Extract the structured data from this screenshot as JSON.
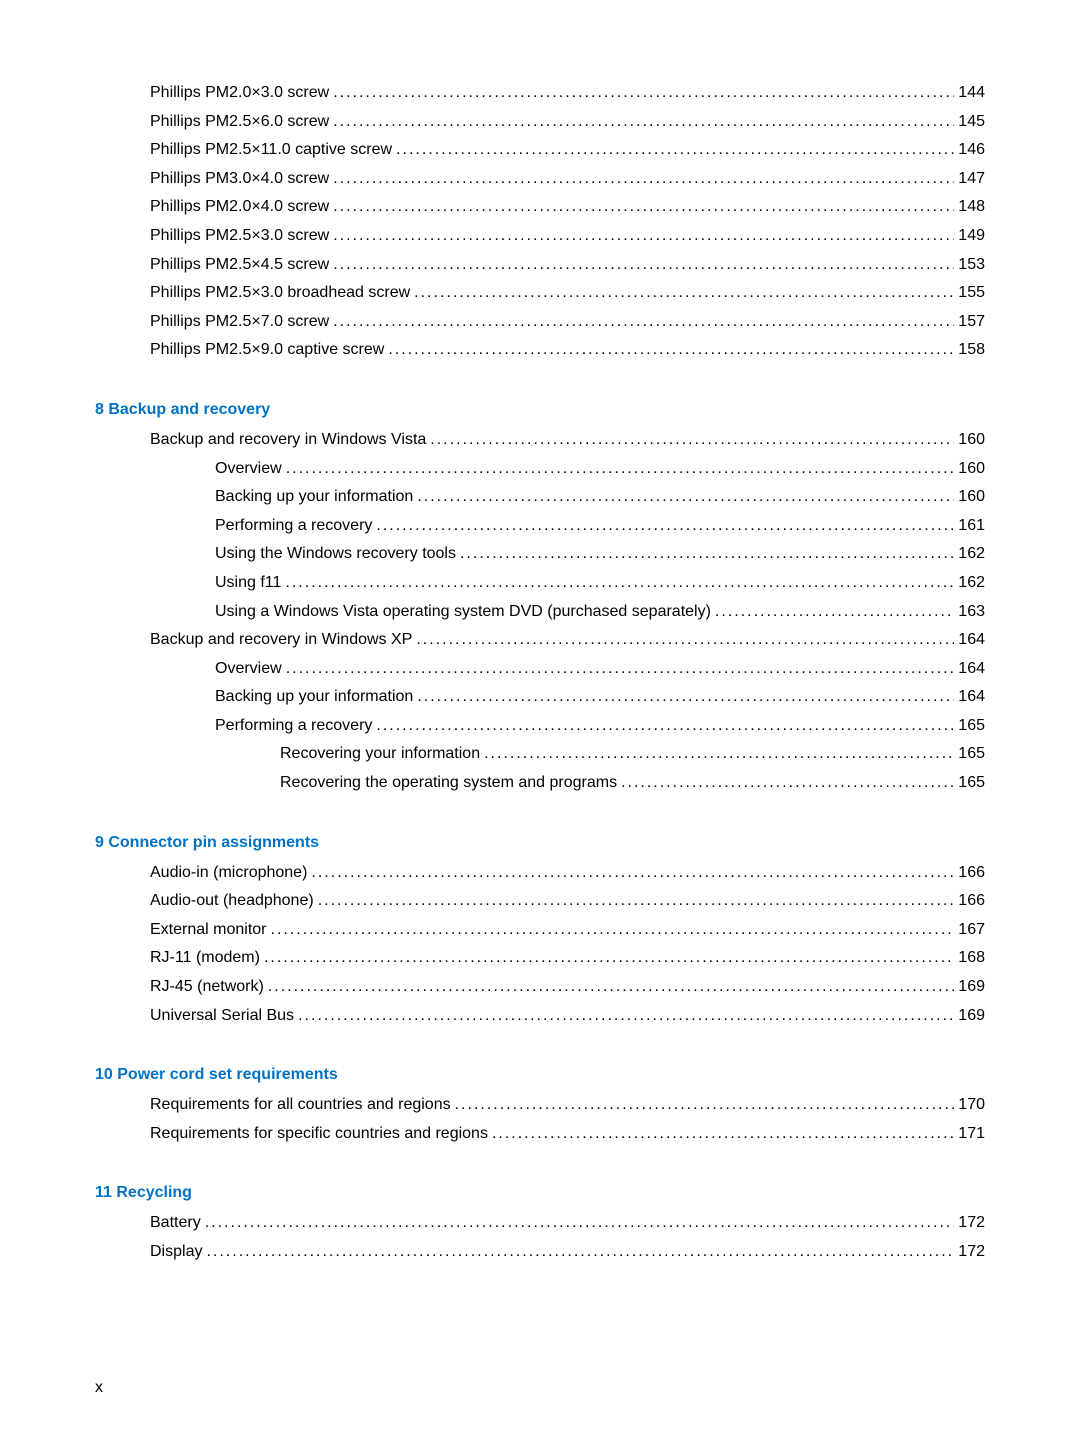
{
  "colors": {
    "heading": "#0072c6",
    "text": "#000000",
    "background": "#ffffff"
  },
  "typography": {
    "body_fontsize": 16,
    "heading_fontsize": 16,
    "heading_weight": "bold",
    "font_family": "Arial"
  },
  "page_footer": "x",
  "sections": [
    {
      "heading": null,
      "entries": [
        {
          "indent": 1,
          "label": "Phillips PM2.0×3.0 screw",
          "page": "144"
        },
        {
          "indent": 1,
          "label": "Phillips PM2.5×6.0 screw",
          "page": "145"
        },
        {
          "indent": 1,
          "label": "Phillips PM2.5×11.0 captive screw",
          "page": "146"
        },
        {
          "indent": 1,
          "label": "Phillips PM3.0×4.0 screw",
          "page": "147"
        },
        {
          "indent": 1,
          "label": "Phillips PM2.0×4.0 screw",
          "page": "148"
        },
        {
          "indent": 1,
          "label": "Phillips PM2.5×3.0 screw",
          "page": "149"
        },
        {
          "indent": 1,
          "label": "Phillips PM2.5×4.5 screw",
          "page": "153"
        },
        {
          "indent": 1,
          "label": "Phillips PM2.5×3.0 broadhead screw",
          "page": "155"
        },
        {
          "indent": 1,
          "label": "Phillips PM2.5×7.0 screw",
          "page": "157"
        },
        {
          "indent": 1,
          "label": "Phillips PM2.5×9.0 captive screw",
          "page": "158"
        }
      ]
    },
    {
      "heading": "8  Backup and recovery",
      "entries": [
        {
          "indent": 1,
          "label": "Backup and recovery in Windows Vista",
          "page": "160"
        },
        {
          "indent": 2,
          "label": "Overview",
          "page": "160"
        },
        {
          "indent": 2,
          "label": "Backing up your information",
          "page": "160"
        },
        {
          "indent": 2,
          "label": "Performing a recovery",
          "page": "161"
        },
        {
          "indent": 2,
          "label": "Using the Windows recovery tools",
          "page": "162"
        },
        {
          "indent": 2,
          "label": "Using f11",
          "page": "162"
        },
        {
          "indent": 2,
          "label": "Using a Windows Vista operating system DVD (purchased separately)",
          "page": "163"
        },
        {
          "indent": 1,
          "label": "Backup and recovery in Windows XP",
          "page": "164"
        },
        {
          "indent": 2,
          "label": "Overview",
          "page": "164"
        },
        {
          "indent": 2,
          "label": "Backing up your information",
          "page": "164"
        },
        {
          "indent": 2,
          "label": "Performing a recovery",
          "page": "165"
        },
        {
          "indent": 3,
          "label": "Recovering your information",
          "page": "165"
        },
        {
          "indent": 3,
          "label": "Recovering the operating system and programs",
          "page": "165"
        }
      ]
    },
    {
      "heading": "9  Connector pin assignments",
      "entries": [
        {
          "indent": 1,
          "label": "Audio-in (microphone)",
          "page": "166"
        },
        {
          "indent": 1,
          "label": "Audio-out (headphone)",
          "page": "166"
        },
        {
          "indent": 1,
          "label": "External monitor",
          "page": "167"
        },
        {
          "indent": 1,
          "label": "RJ-11 (modem)",
          "page": "168"
        },
        {
          "indent": 1,
          "label": "RJ-45 (network)",
          "page": "169"
        },
        {
          "indent": 1,
          "label": "Universal Serial Bus",
          "page": "169"
        }
      ]
    },
    {
      "heading": "10  Power cord set requirements",
      "entries": [
        {
          "indent": 1,
          "label": "Requirements for all countries and regions",
          "page": "170"
        },
        {
          "indent": 1,
          "label": "Requirements for specific countries and regions",
          "page": "171"
        }
      ]
    },
    {
      "heading": "11  Recycling",
      "entries": [
        {
          "indent": 1,
          "label": "Battery",
          "page": "172"
        },
        {
          "indent": 1,
          "label": "Display",
          "page": "172"
        }
      ]
    }
  ]
}
